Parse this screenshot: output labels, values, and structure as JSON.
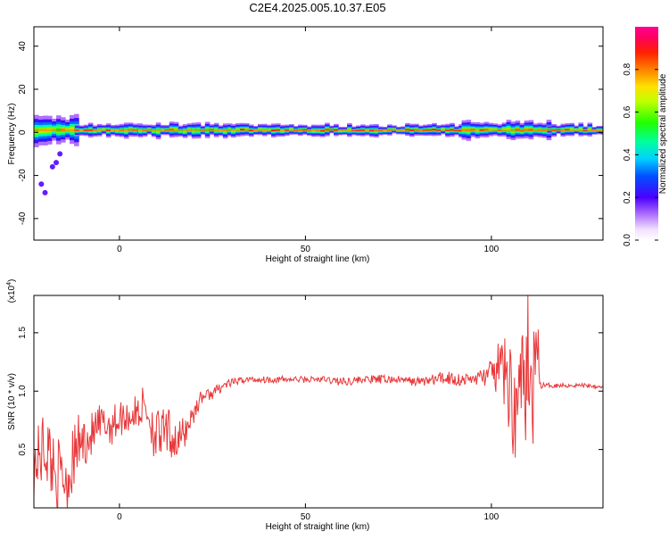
{
  "title": "C2E4.2025.005.10.37.E05",
  "colors": {
    "trace": "#e8383a",
    "axis": "#000000",
    "background": "#ffffff"
  },
  "chart_data": [
    {
      "type": "heatmap",
      "xlabel": "Height of straight line (km)",
      "ylabel": "Frequency (Hz)",
      "xlim": [
        -23,
        130
      ],
      "ylim": [
        -50,
        49
      ],
      "xticks": [
        0,
        50,
        100
      ],
      "yticks": [
        -40,
        -20,
        0,
        20,
        40
      ],
      "colorbar": {
        "label": "Normalized spectral amplitude",
        "range": [
          0,
          1
        ],
        "ticks": [
          "0.0",
          "0.2",
          "0.4",
          "0.6",
          "0.8"
        ],
        "tick_values": [
          0.0,
          0.2,
          0.4,
          0.6,
          0.8
        ]
      },
      "band": {
        "center_freq_hz": 1,
        "x_segments": [
          {
            "x0": -23,
            "x1": -12,
            "half_width_hz": 6,
            "peak": 0.75
          },
          {
            "x0": -12,
            "x1": 5,
            "half_width_hz": 3,
            "peak": 0.85
          },
          {
            "x0": 5,
            "x1": 30,
            "half_width_hz": 3,
            "peak": 0.8
          },
          {
            "x0": 30,
            "x1": 92,
            "half_width_hz": 2.5,
            "peak": 0.9
          },
          {
            "x0": 92,
            "x1": 115,
            "half_width_hz": 4,
            "peak": 0.85
          },
          {
            "x0": 115,
            "x1": 130,
            "half_width_hz": 2.5,
            "peak": 0.9
          }
        ],
        "scatter_spots": [
          {
            "x": -17,
            "y": -14
          },
          {
            "x": -18,
            "y": -16
          },
          {
            "x": -16,
            "y": -10
          },
          {
            "x": -21,
            "y": -24
          },
          {
            "x": -20,
            "y": -28
          }
        ]
      }
    },
    {
      "type": "line",
      "xlabel": "Height of straight line (km)",
      "ylabel": "SNR (10 * v/v)",
      "y_multiplier": "(x10",
      "y_multiplier_exp": "4",
      "xlim": [
        -23,
        130
      ],
      "ylim": [
        0,
        1.82
      ],
      "xticks": [
        0,
        50,
        100
      ],
      "yticks": [
        0.5,
        1.0,
        1.5
      ],
      "ytick_labels": [
        "0.5",
        "1.0",
        "1.5"
      ],
      "series": [
        {
          "x": [
            -23,
            -20,
            -17,
            -14,
            -11,
            -8,
            -5,
            -2,
            1,
            4,
            7,
            10,
            13,
            16,
            19,
            22,
            25,
            28,
            31,
            34,
            37,
            40,
            45,
            50,
            55,
            60,
            65,
            70,
            75,
            80,
            85,
            88,
            91,
            94,
            97,
            100,
            103,
            105,
            107,
            108,
            109,
            110,
            111,
            112,
            113,
            115,
            120,
            125,
            130
          ],
          "y": [
            0.35,
            0.55,
            0.3,
            0.25,
            0.55,
            0.6,
            0.7,
            0.72,
            0.78,
            0.8,
            0.88,
            0.6,
            0.65,
            0.55,
            0.75,
            0.95,
            0.98,
            1.05,
            1.08,
            1.1,
            1.1,
            1.1,
            1.1,
            1.1,
            1.1,
            1.08,
            1.1,
            1.1,
            1.1,
            1.08,
            1.1,
            1.12,
            1.1,
            1.1,
            1.12,
            1.15,
            1.2,
            1.0,
            0.8,
            1.3,
            0.6,
            1.45,
            0.5,
            1.82,
            1.05,
            1.05,
            1.05,
            1.05,
            1.04
          ],
          "noise_amplitude": [
            0.25,
            0.35,
            0.3,
            0.3,
            0.25,
            0.2,
            0.2,
            0.18,
            0.15,
            0.15,
            0.2,
            0.25,
            0.2,
            0.2,
            0.12,
            0.06,
            0.05,
            0.04,
            0.03,
            0.03,
            0.03,
            0.03,
            0.03,
            0.03,
            0.03,
            0.04,
            0.03,
            0.04,
            0.03,
            0.04,
            0.05,
            0.07,
            0.06,
            0.05,
            0.07,
            0.12,
            0.3,
            0.45,
            0.5,
            0.5,
            0.55,
            0.6,
            0.6,
            0.4,
            0.03,
            0.02,
            0.02,
            0.02,
            0.02
          ]
        }
      ]
    }
  ]
}
